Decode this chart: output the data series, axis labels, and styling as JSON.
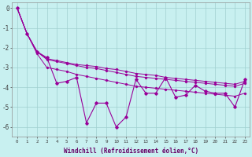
{
  "xlabel": "Windchill (Refroidissement éolien,°C)",
  "background_color": "#c8f0f0",
  "grid_color": "#a0d0d0",
  "line_color": "#990099",
  "x": [
    0,
    1,
    2,
    3,
    4,
    5,
    6,
    7,
    8,
    9,
    10,
    11,
    12,
    13,
    14,
    15,
    16,
    17,
    18,
    19,
    20,
    21,
    22,
    23
  ],
  "line1": [
    0.0,
    -1.3,
    -2.2,
    -2.5,
    -3.8,
    -3.7,
    -3.5,
    -5.8,
    -4.8,
    -4.8,
    -6.0,
    -5.5,
    -3.6,
    -4.3,
    -4.3,
    -3.5,
    -4.5,
    -4.4,
    -3.9,
    -4.2,
    -4.3,
    -4.3,
    -5.0,
    -3.6
  ],
  "line2": [
    0.0,
    -1.3,
    -2.2,
    -2.55,
    -2.65,
    -2.75,
    -2.85,
    -2.9,
    -2.95,
    -3.05,
    -3.1,
    -3.2,
    -3.3,
    -3.35,
    -3.4,
    -3.5,
    -3.55,
    -3.6,
    -3.65,
    -3.7,
    -3.75,
    -3.8,
    -3.85,
    -3.7
  ],
  "line3": [
    0.0,
    -1.3,
    -2.2,
    -2.6,
    -2.7,
    -2.8,
    -2.9,
    -3.0,
    -3.05,
    -3.15,
    -3.25,
    -3.35,
    -3.45,
    -3.5,
    -3.55,
    -3.6,
    -3.65,
    -3.7,
    -3.75,
    -3.8,
    -3.85,
    -3.9,
    -3.95,
    -3.8
  ],
  "line4": [
    0.0,
    -1.3,
    -2.3,
    -3.0,
    -3.1,
    -3.2,
    -3.35,
    -3.45,
    -3.55,
    -3.65,
    -3.75,
    -3.85,
    -3.95,
    -4.0,
    -4.05,
    -4.1,
    -4.15,
    -4.2,
    -4.25,
    -4.3,
    -4.35,
    -4.4,
    -4.45,
    -4.3
  ],
  "ylim": [
    -6.5,
    0.3
  ],
  "xlim": [
    -0.5,
    23.5
  ],
  "yticks": [
    0,
    -1,
    -2,
    -3,
    -4,
    -5,
    -6
  ],
  "xticks": [
    0,
    1,
    2,
    3,
    4,
    5,
    6,
    7,
    8,
    9,
    10,
    11,
    12,
    13,
    14,
    15,
    16,
    17,
    18,
    19,
    20,
    21,
    22,
    23
  ]
}
